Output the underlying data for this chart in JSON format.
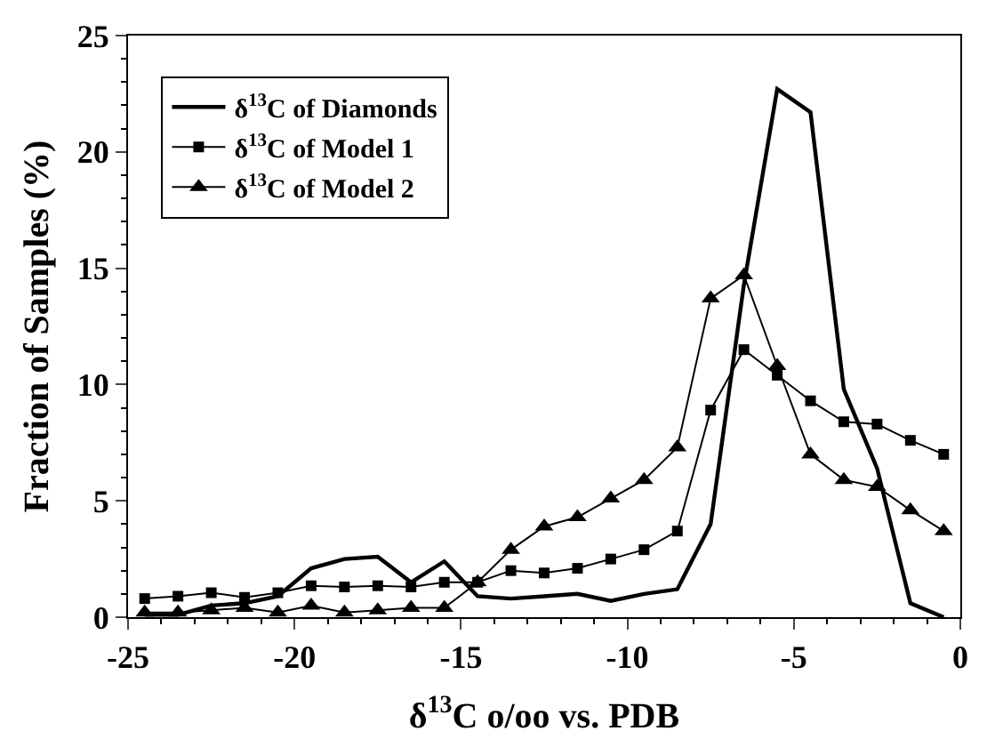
{
  "chart_data": {
    "type": "line",
    "xlabel": "δ$^{13}$C o/oo vs. PDB",
    "ylabel": "Fraction of Samples (%)",
    "x": [
      -24.5,
      -23.5,
      -22.5,
      -21.5,
      -20.5,
      -19.5,
      -18.5,
      -17.5,
      -16.5,
      -15.5,
      -14.5,
      -13.5,
      -12.5,
      -11.5,
      -10.5,
      -9.5,
      -8.5,
      -7.5,
      -6.5,
      -5.5,
      -4.5,
      -3.5,
      -2.5,
      -1.5,
      -0.5
    ],
    "series": [
      {
        "name": "δ$^{13}$C of Diamonds",
        "color": "#000000",
        "marker": "none",
        "values": [
          0.1,
          0.1,
          0.5,
          0.6,
          0.9,
          2.1,
          2.5,
          2.6,
          1.5,
          2.4,
          0.9,
          0.8,
          0.9,
          1.0,
          0.7,
          1.0,
          1.2,
          4.0,
          14.3,
          22.7,
          21.7,
          9.8,
          6.4,
          0.6,
          0
        ]
      },
      {
        "name": "δ$^{13}$C of Model 1",
        "color": "#000000",
        "marker": "square",
        "values": [
          0.8,
          0.9,
          1.05,
          0.85,
          1.05,
          1.35,
          1.3,
          1.35,
          1.3,
          1.5,
          1.5,
          2.0,
          1.9,
          2.1,
          2.5,
          2.9,
          3.7,
          8.9,
          11.5,
          10.4,
          9.3,
          8.4,
          8.3,
          7.6,
          7.0
        ]
      },
      {
        "name": "δ$^{13}$C of Model 2",
        "color": "#000000",
        "marker": "triangle",
        "values": [
          0.2,
          0.2,
          0.3,
          0.4,
          0.2,
          0.5,
          0.2,
          0.3,
          0.4,
          0.4,
          1.5,
          2.9,
          3.9,
          4.3,
          5.1,
          5.9,
          7.3,
          13.7,
          14.7,
          10.8,
          7.0,
          5.9,
          5.6,
          4.6,
          3.7
        ]
      }
    ],
    "xlim": [
      -25,
      0
    ],
    "xticks": [
      -25,
      -20,
      -15,
      -10,
      -5,
      0
    ],
    "ylim": [
      0,
      25
    ],
    "yticks": [
      0,
      5,
      10,
      15,
      20,
      25
    ],
    "grid": false,
    "legend": "top left"
  }
}
